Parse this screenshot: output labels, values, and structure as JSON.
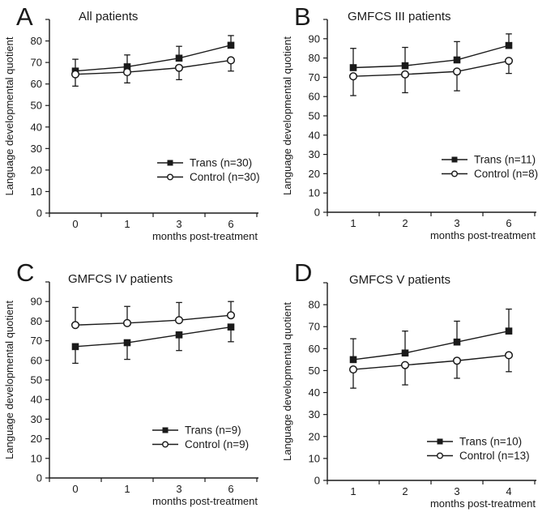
{
  "figure": {
    "background": "#ffffff",
    "ink_color": "#1a1a1a"
  },
  "chart_data": [
    {
      "type": "line",
      "panel": "A",
      "title": "All patients",
      "xlabel": "months post-treatment",
      "ylabel": "Language developmental quotient",
      "categories": [
        "0",
        "1",
        "3",
        "6"
      ],
      "yticks": [
        0,
        10,
        20,
        30,
        40,
        50,
        60,
        70,
        80
      ],
      "ylim": [
        0,
        90
      ],
      "grid": false,
      "legend_position": "inside lower right",
      "series": [
        {
          "name": "Trans (n=30)",
          "marker": "filled-square",
          "values": [
            66,
            68,
            72,
            78
          ],
          "error": [
            5.5,
            5.5,
            5.5,
            4.5
          ],
          "error_direction": "up"
        },
        {
          "name": "Control (n=30)",
          "marker": "open-circle",
          "values": [
            64.5,
            65.5,
            67.5,
            71
          ],
          "error": [
            5.5,
            5,
            5.5,
            5
          ],
          "error_direction": "down"
        }
      ]
    },
    {
      "type": "line",
      "panel": "B",
      "title": "GMFCS III patients",
      "xlabel": "months post-treatment",
      "ylabel": "Language developmental quotient",
      "categories": [
        "1",
        "2",
        "3",
        "6"
      ],
      "yticks": [
        0,
        10,
        20,
        30,
        40,
        50,
        60,
        70,
        80,
        90
      ],
      "ylim": [
        0,
        100
      ],
      "grid": false,
      "legend_position": "inside lower right",
      "series": [
        {
          "name": "Trans (n=11)",
          "marker": "filled-square",
          "values": [
            75,
            76,
            79,
            86.5
          ],
          "error": [
            10,
            9.5,
            9.5,
            6
          ],
          "error_direction": "up"
        },
        {
          "name": "Control (n=8)",
          "marker": "open-circle",
          "values": [
            70.5,
            71.5,
            73,
            78.5
          ],
          "error": [
            10,
            9.5,
            10,
            6.5
          ],
          "error_direction": "down"
        }
      ]
    },
    {
      "type": "line",
      "panel": "C",
      "title": "GMFCS IV patients",
      "xlabel": "months post-treatment",
      "ylabel": "Language developmental quotient",
      "categories": [
        "0",
        "1",
        "3",
        "6"
      ],
      "yticks": [
        0,
        10,
        20,
        30,
        40,
        50,
        60,
        70,
        80,
        90
      ],
      "ylim": [
        0,
        100
      ],
      "grid": false,
      "legend_position": "inside lower right",
      "series": [
        {
          "name": "Trans (n=9)",
          "marker": "filled-square",
          "values": [
            67,
            69,
            73,
            77
          ],
          "error": [
            8.5,
            8.5,
            8,
            7.5
          ],
          "error_direction": "down"
        },
        {
          "name": "Control (n=9)",
          "marker": "open-circle",
          "values": [
            78,
            79,
            80.5,
            83
          ],
          "error": [
            9,
            8.5,
            9,
            7
          ],
          "error_direction": "up"
        }
      ]
    },
    {
      "type": "line",
      "panel": "D",
      "title": "GMFCS V patients",
      "xlabel": "months post-treatment",
      "ylabel": "Language developmental quotient",
      "categories": [
        "1",
        "2",
        "3",
        "4"
      ],
      "yticks": [
        0,
        10,
        20,
        30,
        40,
        50,
        60,
        70,
        80
      ],
      "ylim": [
        0,
        90
      ],
      "grid": false,
      "legend_position": "inside lower right",
      "series": [
        {
          "name": "Trans (n=10)",
          "marker": "filled-square",
          "values": [
            55,
            58,
            63,
            68
          ],
          "error": [
            9.5,
            10,
            9.5,
            10
          ],
          "error_direction": "up"
        },
        {
          "name": "Control (n=13)",
          "marker": "open-circle",
          "values": [
            50.5,
            52.5,
            54.5,
            57
          ],
          "error": [
            8.5,
            9,
            8,
            7.5
          ],
          "error_direction": "down"
        }
      ]
    }
  ]
}
